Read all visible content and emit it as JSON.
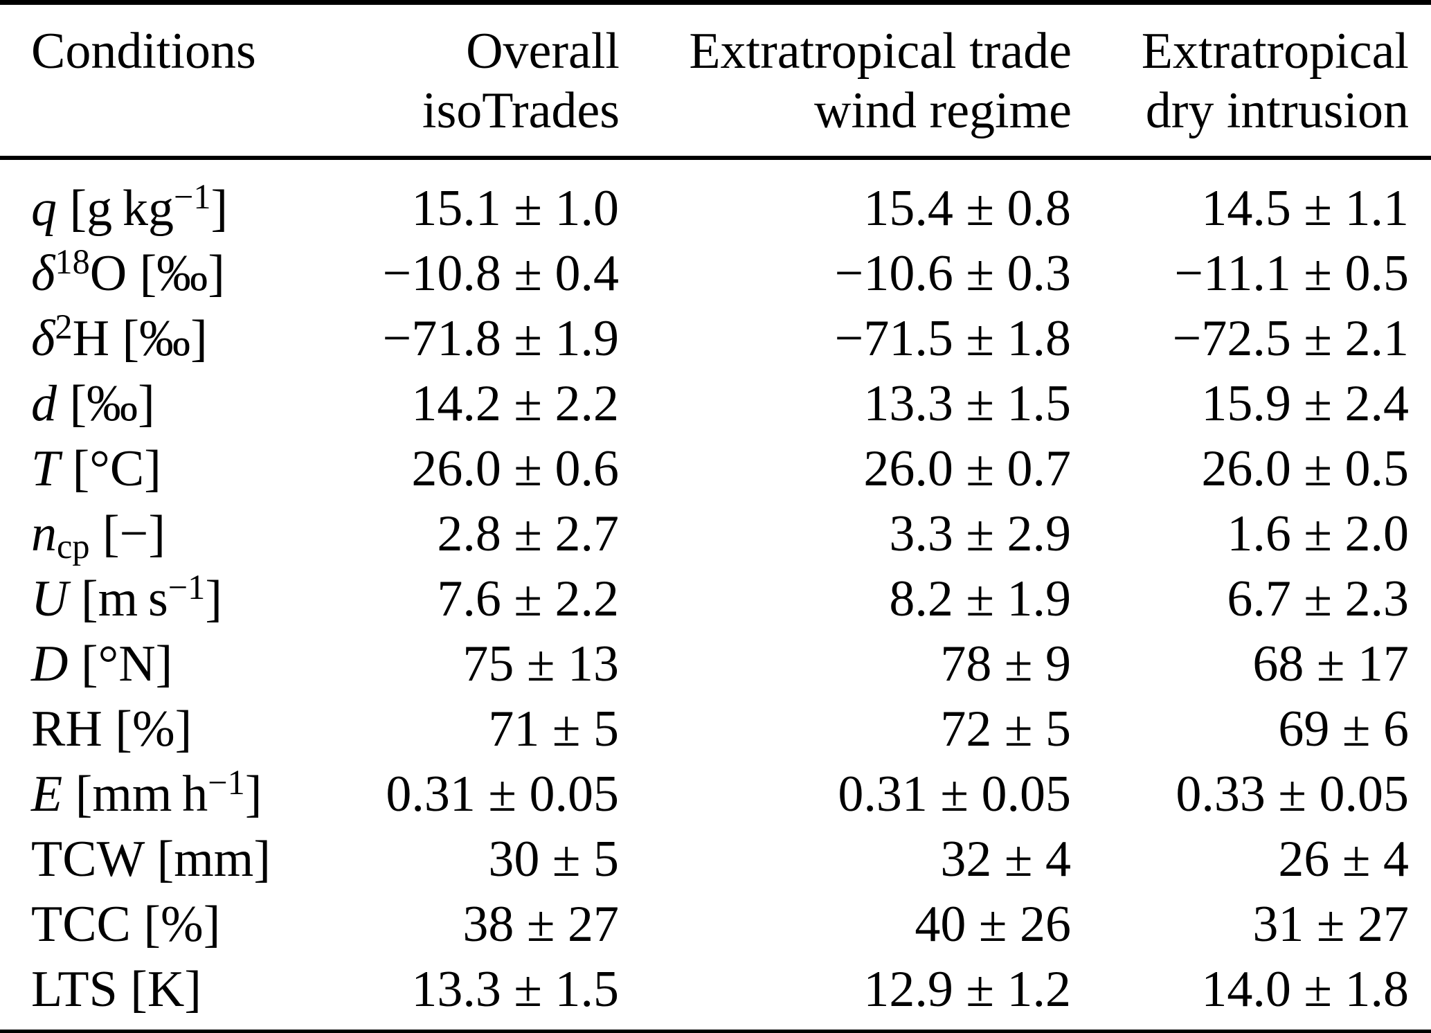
{
  "page": {
    "background_color": "#ffffff",
    "text_color": "#000000"
  },
  "table": {
    "columns": [
      {
        "id": "conditions",
        "label": "Conditions"
      },
      {
        "id": "overall",
        "label": "Overall\nisoTrades"
      },
      {
        "id": "trade-wind",
        "label": "Extratropical trade\nwind regime"
      },
      {
        "id": "dry-intrusion",
        "label": "Extratropical\ndry intrusion"
      }
    ],
    "rows": [
      {
        "name": "q",
        "label": [
          {
            "t": "q",
            "s": "var"
          },
          {
            "t": " [g kg"
          },
          {
            "t": "−1",
            "s": "sup"
          },
          {
            "t": "]"
          }
        ],
        "values": [
          "15.1 ± 1.0",
          "15.4 ± 0.8",
          "14.5 ± 1.1"
        ]
      },
      {
        "name": "delta18O",
        "label": [
          {
            "t": "δ",
            "s": "var"
          },
          {
            "t": "18",
            "s": "sup"
          },
          {
            "t": "O [‰]"
          }
        ],
        "values": [
          "−10.8 ± 0.4",
          "−10.6 ± 0.3",
          "−11.1 ± 0.5"
        ]
      },
      {
        "name": "delta2H",
        "label": [
          {
            "t": "δ",
            "s": "var"
          },
          {
            "t": "2",
            "s": "sup"
          },
          {
            "t": "H [‰]"
          }
        ],
        "values": [
          "−71.8 ± 1.9",
          "−71.5 ± 1.8",
          "−72.5 ± 2.1"
        ]
      },
      {
        "name": "d",
        "label": [
          {
            "t": "d",
            "s": "var"
          },
          {
            "t": " [‰]"
          }
        ],
        "values": [
          "14.2 ± 2.2",
          "13.3 ± 1.5",
          "15.9 ± 2.4"
        ]
      },
      {
        "name": "T",
        "label": [
          {
            "t": "T",
            "s": "var"
          },
          {
            "t": " [°C]"
          }
        ],
        "values": [
          "26.0 ± 0.6",
          "26.0 ± 0.7",
          "26.0 ± 0.5"
        ]
      },
      {
        "name": "ncp",
        "label": [
          {
            "t": "n",
            "s": "var"
          },
          {
            "t": "cp",
            "s": "sub"
          },
          {
            "t": " [−]"
          }
        ],
        "values": [
          "2.8 ± 2.7",
          "3.3 ± 2.9",
          "1.6 ± 2.0"
        ]
      },
      {
        "name": "U",
        "label": [
          {
            "t": "U",
            "s": "var"
          },
          {
            "t": " [m s"
          },
          {
            "t": "−1",
            "s": "sup"
          },
          {
            "t": "]"
          }
        ],
        "values": [
          "7.6 ± 2.2",
          "8.2 ± 1.9",
          "6.7 ± 2.3"
        ]
      },
      {
        "name": "D",
        "label": [
          {
            "t": "D",
            "s": "var"
          },
          {
            "t": " [°N]"
          }
        ],
        "values": [
          "75 ± 13",
          "78 ± 9",
          "68 ± 17"
        ]
      },
      {
        "name": "RH",
        "label": [
          {
            "t": "RH [%]"
          }
        ],
        "values": [
          "71 ± 5",
          "72 ± 5",
          "69 ± 6"
        ]
      },
      {
        "name": "E",
        "label": [
          {
            "t": "E",
            "s": "var"
          },
          {
            "t": " [mm h"
          },
          {
            "t": "−1",
            "s": "sup"
          },
          {
            "t": "]"
          }
        ],
        "values": [
          "0.31 ± 0.05",
          "0.31 ± 0.05",
          "0.33 ± 0.05"
        ]
      },
      {
        "name": "TCW",
        "label": [
          {
            "t": "TCW [mm]"
          }
        ],
        "values": [
          "30 ± 5",
          "32 ± 4",
          "26 ± 4"
        ]
      },
      {
        "name": "TCC",
        "label": [
          {
            "t": "TCC [%]"
          }
        ],
        "values": [
          "38 ± 27",
          "40 ± 26",
          "31 ± 27"
        ]
      },
      {
        "name": "LTS",
        "label": [
          {
            "t": "LTS [K]"
          }
        ],
        "values": [
          "13.3 ± 1.5",
          "12.9 ± 1.2",
          "14.0 ± 1.8"
        ]
      }
    ]
  }
}
